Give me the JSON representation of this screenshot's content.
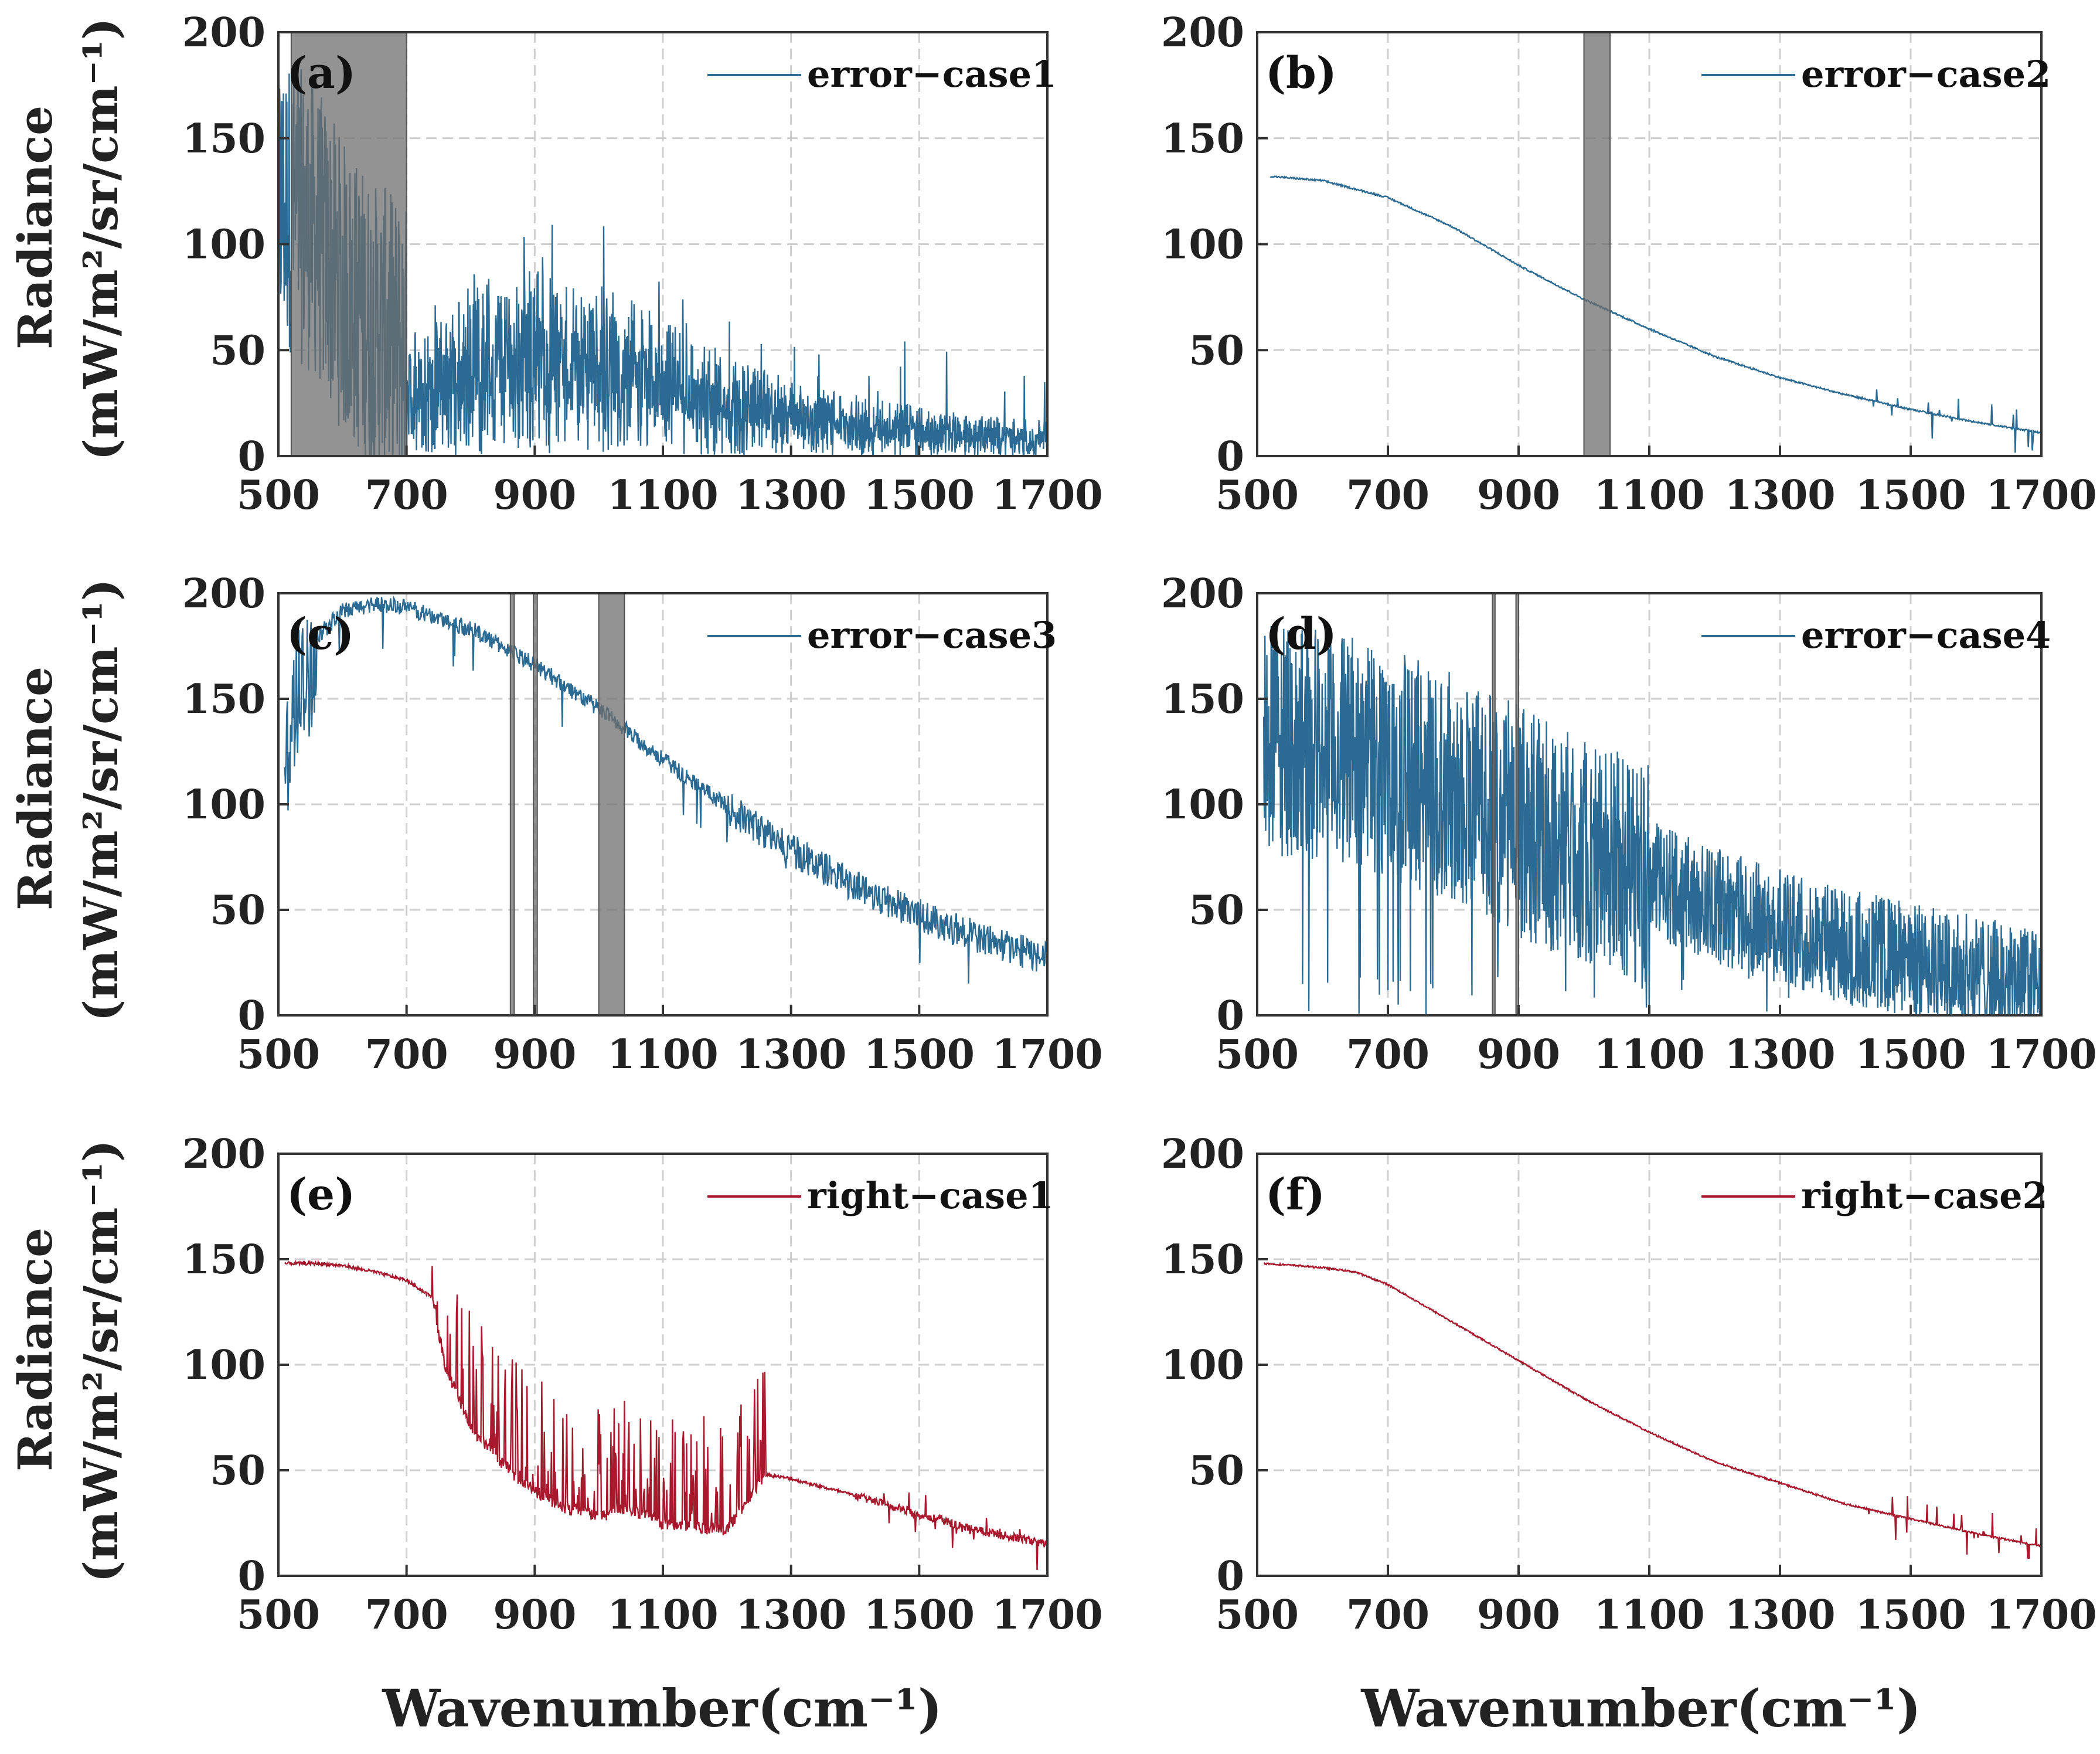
{
  "colors": {
    "error": "#2b6a92",
    "right": "#a8192e",
    "shade": "#6f6f6f",
    "grid": "#cfcfcf",
    "axis": "#333333"
  },
  "axis_text": {
    "ylabel_line1": "Radiance",
    "ylabel_line2": "(mW/m²/sr/cm⁻¹)",
    "xlabel": "Wavenumber(cm⁻¹)"
  },
  "chart_data": [
    {
      "type": "line",
      "panel": "(a)",
      "series": [
        {
          "name": "error−case1",
          "color": "error"
        }
      ],
      "xlim": [
        500,
        1700
      ],
      "ylim": [
        0,
        200
      ],
      "xticks": [
        500,
        700,
        900,
        1100,
        1300,
        1500,
        1700
      ],
      "yticks": [
        0,
        50,
        100,
        150,
        200
      ],
      "grid": true,
      "legend": "top-right",
      "shaded_ranges": [
        [
          520,
          700
        ]
      ],
      "profile": {
        "x": [
          500,
          520,
          560,
          600,
          650,
          700,
          760,
          800,
          900,
          1000,
          1100,
          1200,
          1300,
          1400,
          1500,
          1600,
          1700
        ],
        "y": [
          120,
          118,
          105,
          80,
          60,
          50,
          55,
          70,
          75,
          70,
          55,
          40,
          30,
          24,
          20,
          16,
          14
        ]
      },
      "noise": "absorption-lines-deep"
    },
    {
      "type": "line",
      "panel": "(b)",
      "series": [
        {
          "name": "error−case2",
          "color": "error"
        }
      ],
      "xlim": [
        500,
        1700
      ],
      "ylim": [
        0,
        200
      ],
      "xticks": [
        500,
        700,
        900,
        1100,
        1300,
        1500,
        1700
      ],
      "yticks": [
        0,
        50,
        100,
        150,
        200
      ],
      "grid": true,
      "legend": "top-right",
      "shaded_ranges": [
        [
          1000,
          1040
        ]
      ],
      "profile": {
        "x": [
          520,
          600,
          700,
          800,
          900,
          1000,
          1100,
          1200,
          1300,
          1400,
          1500,
          1600,
          1700
        ],
        "y": [
          132,
          130,
          122,
          108,
          90,
          74,
          60,
          47,
          37,
          29,
          22,
          16,
          11
        ]
      },
      "noise": "sparse-high-end"
    },
    {
      "type": "line",
      "panel": "(c)",
      "series": [
        {
          "name": "error−case3",
          "color": "error"
        }
      ],
      "xlim": [
        500,
        1700
      ],
      "ylim": [
        0,
        200
      ],
      "xticks": [
        500,
        700,
        900,
        1100,
        1300,
        1500,
        1700
      ],
      "yticks": [
        0,
        50,
        100,
        150,
        200
      ],
      "grid": true,
      "legend": "top-right",
      "shaded_ranges": [
        [
          862,
          868
        ],
        [
          898,
          904
        ],
        [
          1000,
          1040
        ]
      ],
      "profile": {
        "x": [
          510,
          530,
          560,
          600,
          650,
          700,
          800,
          900,
          1000,
          1100,
          1200,
          1300,
          1400,
          1500,
          1600,
          1700
        ],
        "y": [
          130,
          165,
          180,
          192,
          196,
          194,
          184,
          167,
          146,
          122,
          100,
          80,
          63,
          49,
          38,
          28
        ]
      },
      "noise": "dense-light"
    },
    {
      "type": "line",
      "panel": "(d)",
      "series": [
        {
          "name": "error−case4",
          "color": "error"
        }
      ],
      "xlim": [
        500,
        1700
      ],
      "ylim": [
        0,
        200
      ],
      "xticks": [
        500,
        700,
        900,
        1100,
        1300,
        1500,
        1700
      ],
      "yticks": [
        0,
        50,
        100,
        150,
        200
      ],
      "grid": true,
      "legend": "top-right",
      "shaded_ranges": [
        [
          860,
          864
        ],
        [
          896,
          900
        ]
      ],
      "profile": {
        "x": [
          510,
          600,
          700,
          800,
          900,
          1000,
          1100,
          1200,
          1300,
          1400,
          1500,
          1600,
          1700
        ],
        "y": [
          130,
          128,
          120,
          108,
          92,
          78,
          65,
          52,
          42,
          33,
          26,
          20,
          14
        ]
      },
      "noise": "dense-heavy"
    },
    {
      "type": "line",
      "panel": "(e)",
      "series": [
        {
          "name": "right−case1",
          "color": "right"
        }
      ],
      "xlim": [
        500,
        1700
      ],
      "ylim": [
        0,
        200
      ],
      "xticks": [
        500,
        700,
        900,
        1100,
        1300,
        1500,
        1700
      ],
      "yticks": [
        0,
        50,
        100,
        150,
        200
      ],
      "grid": true,
      "legend": "top-right",
      "shaded_ranges": [],
      "profile": {
        "x": [
          510,
          560,
          600,
          650,
          700,
          740,
          760,
          800,
          860,
          900,
          950,
          1000,
          1040,
          1100,
          1200,
          1260,
          1300,
          1400,
          1500,
          1600,
          1700
        ],
        "y": [
          148,
          148,
          147,
          144,
          140,
          132,
          100,
          70,
          50,
          40,
          32,
          28,
          32,
          25,
          22,
          48,
          46,
          38,
          29,
          21,
          15
        ]
      },
      "noise": "upward-spikes-mid"
    },
    {
      "type": "line",
      "panel": "(f)",
      "series": [
        {
          "name": "right−case2",
          "color": "right"
        }
      ],
      "xlim": [
        500,
        1700
      ],
      "ylim": [
        0,
        200
      ],
      "xticks": [
        500,
        700,
        900,
        1100,
        1300,
        1500,
        1700
      ],
      "yticks": [
        0,
        50,
        100,
        150,
        200
      ],
      "grid": true,
      "legend": "top-right",
      "shaded_ranges": [],
      "profile": {
        "x": [
          510,
          560,
          600,
          650,
          700,
          800,
          900,
          1000,
          1100,
          1200,
          1300,
          1400,
          1500,
          1600,
          1700
        ],
        "y": [
          148,
          147,
          146,
          144,
          138,
          120,
          102,
          84,
          68,
          54,
          44,
          34,
          27,
          20,
          14
        ]
      },
      "noise": "sparse-high-end"
    }
  ]
}
